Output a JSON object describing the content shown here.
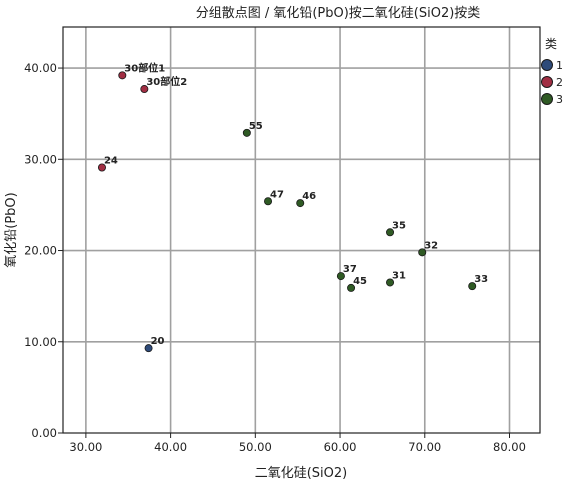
{
  "chart_data": {
    "type": "scatter",
    "title": "分组散点图 / 氧化铅(PbO)按二氧化硅(SiO2)按类",
    "xlabel": "二氧化硅(SiO2)",
    "ylabel": "氧化铅(PbO)",
    "xlim": [
      27.3,
      83.6
    ],
    "ylim": [
      0,
      44.5
    ],
    "x_ticks": [
      "30.00",
      "40.00",
      "50.00",
      "60.00",
      "70.00",
      "80.00"
    ],
    "x_tick_values": [
      30,
      40,
      50,
      60,
      70,
      80
    ],
    "y_ticks": [
      "0.00",
      "10.00",
      "20.00",
      "30.00",
      "40.00"
    ],
    "y_tick_values": [
      0,
      10,
      20,
      30,
      40
    ],
    "grid": true,
    "legend": {
      "title": "类",
      "placement": "right",
      "entries": [
        {
          "name": "1",
          "color": "#2e4b7a"
        },
        {
          "name": "2",
          "color": "#a12e43"
        },
        {
          "name": "3",
          "color": "#2f5a24"
        }
      ]
    },
    "series": [
      {
        "name": "1",
        "color": "#2e4b7a",
        "points": [
          {
            "x": 37.4,
            "y": 9.3,
            "label": "20"
          }
        ]
      },
      {
        "name": "2",
        "color": "#a12e43",
        "points": [
          {
            "x": 34.3,
            "y": 39.2,
            "label": "30部位1"
          },
          {
            "x": 36.9,
            "y": 37.7,
            "label": "30部位2"
          },
          {
            "x": 31.9,
            "y": 29.1,
            "label": "24"
          }
        ]
      },
      {
        "name": "3",
        "color": "#2f5a24",
        "points": [
          {
            "x": 49.0,
            "y": 32.9,
            "label": "55"
          },
          {
            "x": 51.5,
            "y": 25.4,
            "label": "47"
          },
          {
            "x": 55.3,
            "y": 25.2,
            "label": "46"
          },
          {
            "x": 65.9,
            "y": 22.0,
            "label": "35"
          },
          {
            "x": 69.7,
            "y": 19.8,
            "label": "32"
          },
          {
            "x": 60.1,
            "y": 17.2,
            "label": "37"
          },
          {
            "x": 61.3,
            "y": 15.9,
            "label": "45"
          },
          {
            "x": 65.9,
            "y": 16.5,
            "label": "31"
          },
          {
            "x": 75.6,
            "y": 16.1,
            "label": "33"
          }
        ]
      }
    ]
  }
}
